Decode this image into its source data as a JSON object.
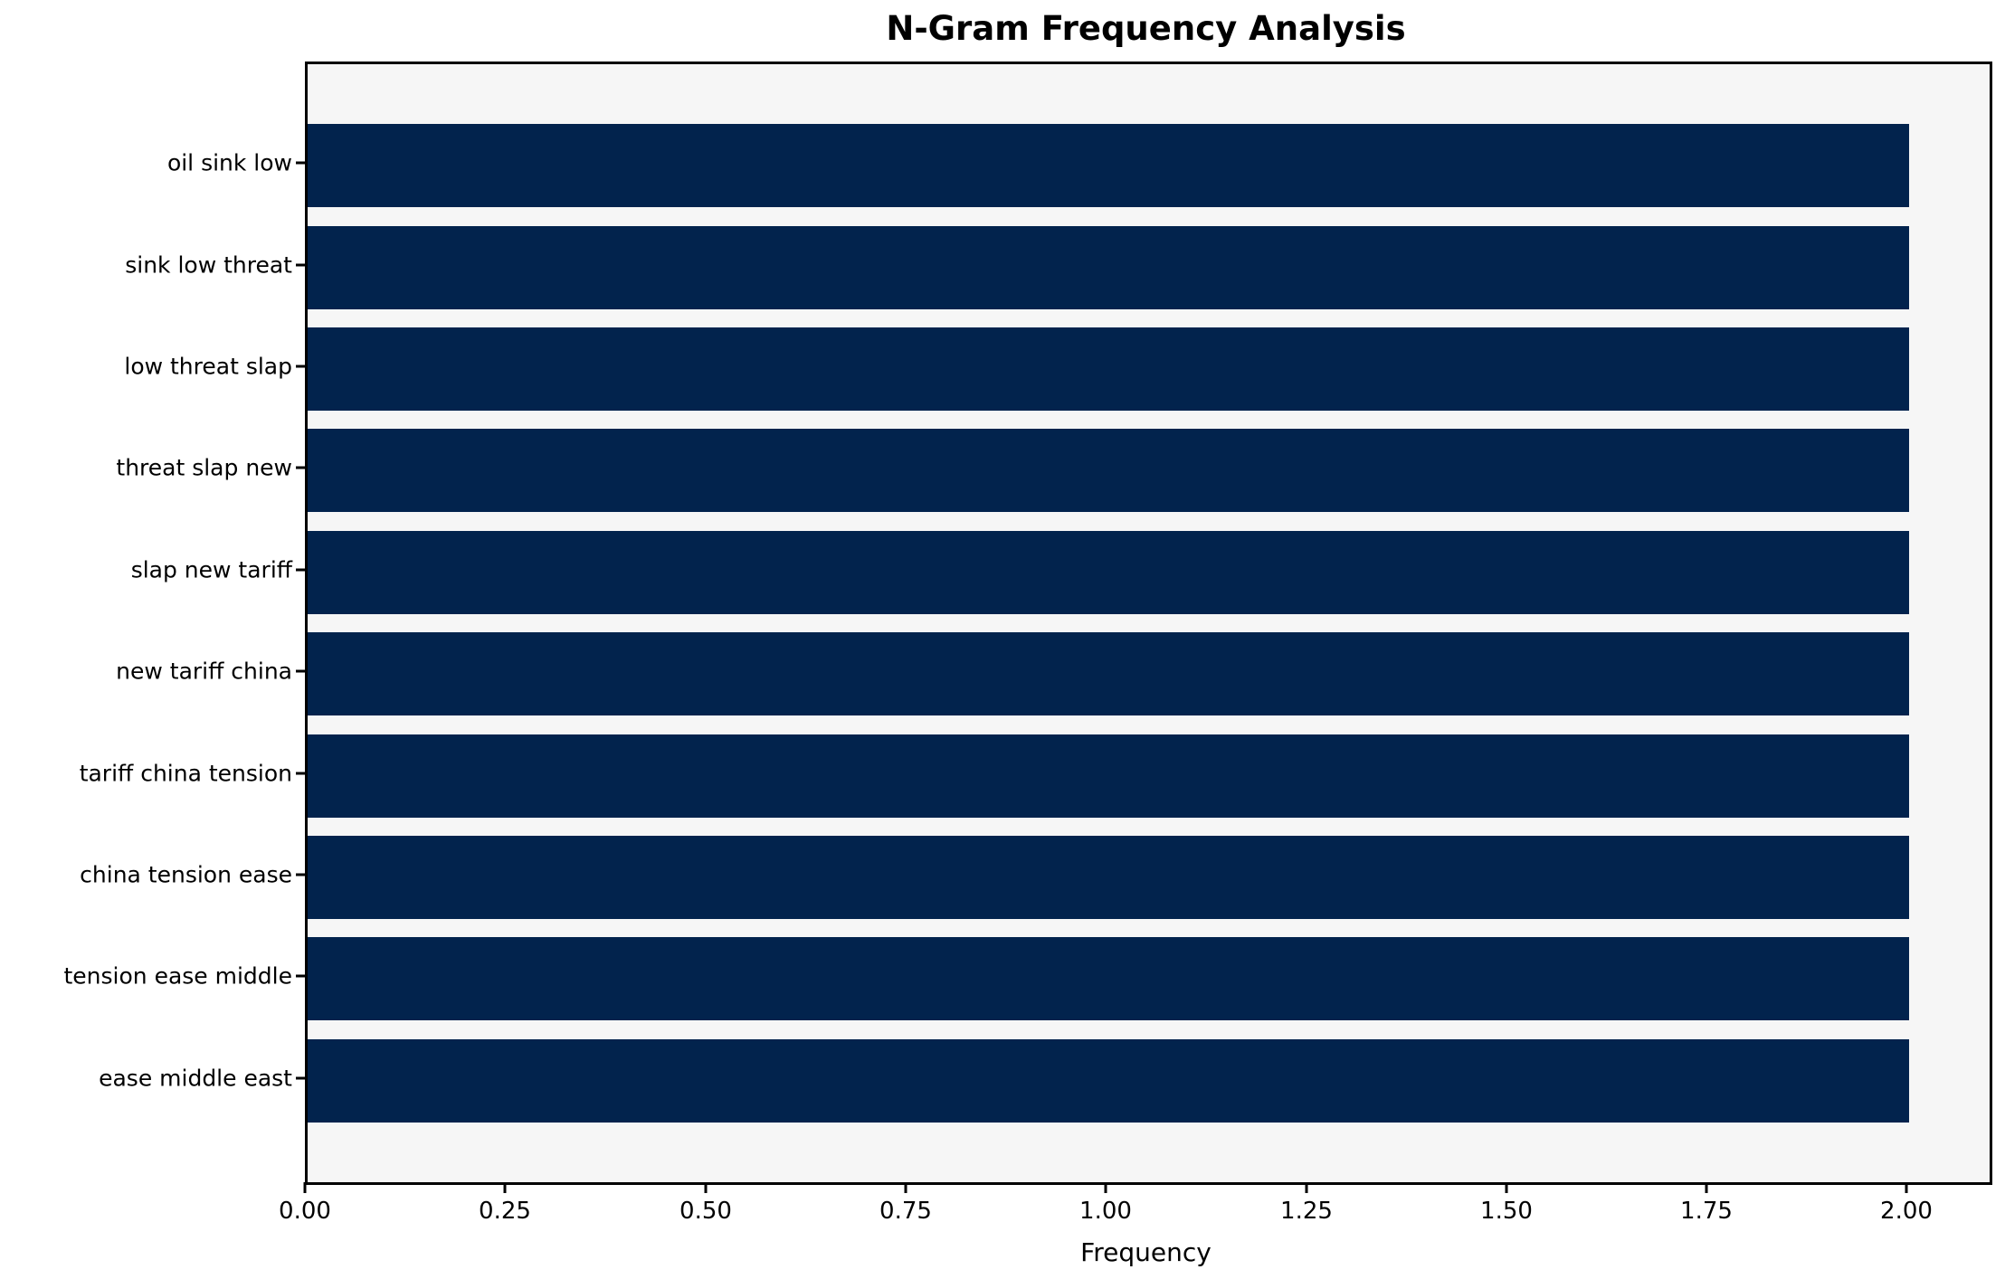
{
  "chart_data": {
    "type": "bar",
    "orientation": "horizontal",
    "title": "N-Gram Frequency Analysis",
    "xlabel": "Frequency",
    "ylabel": "",
    "categories": [
      "oil sink low",
      "sink low threat",
      "low threat slap",
      "threat slap new",
      "slap new tariff",
      "new tariff china",
      "tariff china tension",
      "china tension ease",
      "tension ease middle",
      "ease middle east"
    ],
    "values": [
      2,
      2,
      2,
      2,
      2,
      2,
      2,
      2,
      2,
      2
    ],
    "xlim": [
      0,
      2.1
    ],
    "xtick_labels": [
      "0.00",
      "0.25",
      "0.50",
      "0.75",
      "1.00",
      "1.25",
      "1.50",
      "1.75",
      "2.00"
    ],
    "xtick_values": [
      0,
      0.25,
      0.5,
      0.75,
      1.0,
      1.25,
      1.5,
      1.75,
      2.0
    ],
    "grid": false,
    "legend": null,
    "colors": {
      "bar": "#02234d",
      "plot_background": "#f6f6f6",
      "figure_background": "#ffffff",
      "spine": "#000000",
      "text": "#000000"
    }
  }
}
